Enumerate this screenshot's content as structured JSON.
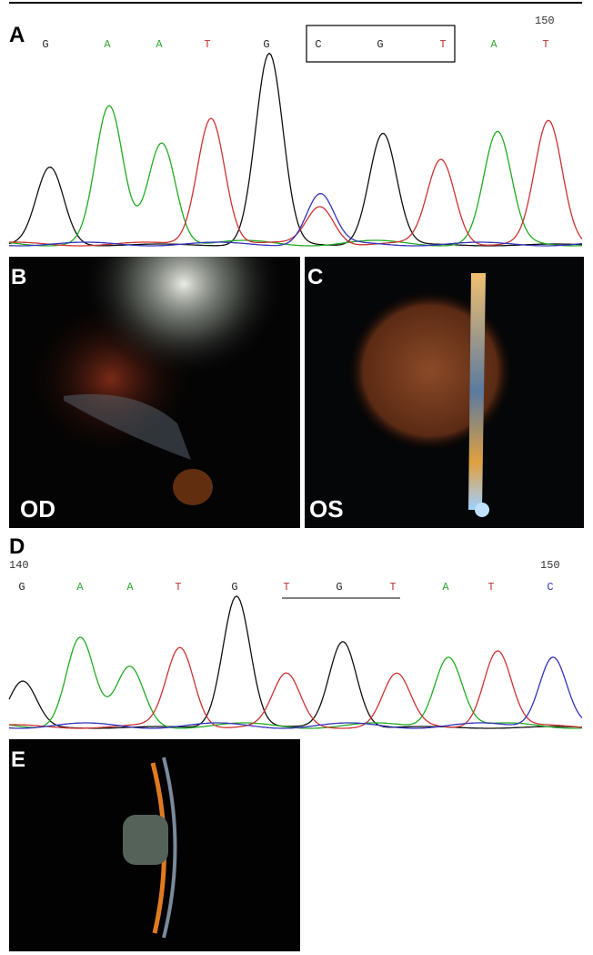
{
  "panels": {
    "a": {
      "label": "A",
      "position": "150",
      "bases": [
        "G",
        "A",
        "A",
        "T",
        "G",
        "C",
        "G",
        "T",
        "A",
        "T"
      ],
      "base_colors": [
        "#222",
        "#3a3",
        "#3a3",
        "#b33",
        "#222",
        "#222",
        "#222",
        "#b33",
        "#3a3",
        "#b33"
      ]
    },
    "b": {
      "label": "B",
      "eye": "OD"
    },
    "c": {
      "label": "C",
      "eye": "OS"
    },
    "d": {
      "label": "D",
      "start": "140",
      "end": "150",
      "bases": [
        "G",
        "A",
        "A",
        "T",
        "G",
        "T",
        "G",
        "T",
        "A",
        "T",
        "C"
      ],
      "base_colors": [
        "#222",
        "#3a3",
        "#3a3",
        "#b33",
        "#222",
        "#b33",
        "#222",
        "#b33",
        "#3a3",
        "#b33",
        "#33b"
      ]
    },
    "e": {
      "label": "E"
    }
  }
}
